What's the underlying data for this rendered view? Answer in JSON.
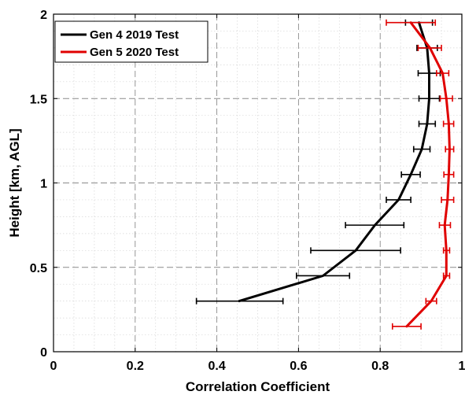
{
  "chart_data": {
    "type": "line",
    "xlabel": "Correlation Coefficient",
    "ylabel": "Height [km, AGL]",
    "xlim": [
      0,
      1
    ],
    "ylim": [
      0,
      2
    ],
    "x_ticks": [
      0,
      0.2,
      0.4,
      0.6,
      0.8,
      1
    ],
    "x_tick_labels": [
      "0",
      "0.2",
      "0.4",
      "0.6",
      "0.8",
      "1"
    ],
    "y_ticks": [
      0,
      0.5,
      1,
      1.5,
      2
    ],
    "y_tick_labels": [
      "0",
      "0.5",
      "1",
      "1.5",
      "2"
    ],
    "grid": {
      "major": true,
      "minor": true
    },
    "legend_position": "top-left",
    "series": [
      {
        "name": "Gen 4 2019 Test",
        "color": "#000000",
        "points": [
          {
            "y": 0.3,
            "x": 0.455,
            "xerr_low": 0.35,
            "xerr_high": 0.562
          },
          {
            "y": 0.45,
            "x": 0.66,
            "xerr_low": 0.595,
            "xerr_high": 0.725
          },
          {
            "y": 0.6,
            "x": 0.74,
            "xerr_low": 0.63,
            "xerr_high": 0.85
          },
          {
            "y": 0.75,
            "x": 0.787,
            "xerr_low": 0.715,
            "xerr_high": 0.858
          },
          {
            "y": 0.9,
            "x": 0.845,
            "xerr_low": 0.815,
            "xerr_high": 0.875
          },
          {
            "y": 1.05,
            "x": 0.875,
            "xerr_low": 0.852,
            "xerr_high": 0.898
          },
          {
            "y": 1.2,
            "x": 0.902,
            "xerr_low": 0.882,
            "xerr_high": 0.922
          },
          {
            "y": 1.35,
            "x": 0.915,
            "xerr_low": 0.895,
            "xerr_high": 0.935
          },
          {
            "y": 1.5,
            "x": 0.92,
            "xerr_low": 0.895,
            "xerr_high": 0.945
          },
          {
            "y": 1.65,
            "x": 0.92,
            "xerr_low": 0.893,
            "xerr_high": 0.947
          },
          {
            "y": 1.8,
            "x": 0.915,
            "xerr_low": 0.89,
            "xerr_high": 0.94
          },
          {
            "y": 1.95,
            "x": 0.895,
            "xerr_low": 0.862,
            "xerr_high": 0.928
          }
        ]
      },
      {
        "name": "Gen 5 2020 Test",
        "color": "#e00000",
        "points": [
          {
            "y": 0.15,
            "x": 0.865,
            "xerr_low": 0.83,
            "xerr_high": 0.9
          },
          {
            "y": 0.3,
            "x": 0.925,
            "xerr_low": 0.912,
            "xerr_high": 0.938
          },
          {
            "y": 0.45,
            "x": 0.962,
            "xerr_low": 0.955,
            "xerr_high": 0.97
          },
          {
            "y": 0.6,
            "x": 0.962,
            "xerr_low": 0.955,
            "xerr_high": 0.97
          },
          {
            "y": 0.75,
            "x": 0.958,
            "xerr_low": 0.945,
            "xerr_high": 0.972
          },
          {
            "y": 0.9,
            "x": 0.965,
            "xerr_low": 0.95,
            "xerr_high": 0.98
          },
          {
            "y": 1.05,
            "x": 0.968,
            "xerr_low": 0.956,
            "xerr_high": 0.98
          },
          {
            "y": 1.2,
            "x": 0.97,
            "xerr_low": 0.96,
            "xerr_high": 0.98
          },
          {
            "y": 1.35,
            "x": 0.968,
            "xerr_low": 0.955,
            "xerr_high": 0.98
          },
          {
            "y": 1.5,
            "x": 0.962,
            "xerr_low": 0.947,
            "xerr_high": 0.977
          },
          {
            "y": 1.65,
            "x": 0.953,
            "xerr_low": 0.938,
            "xerr_high": 0.968
          },
          {
            "y": 1.8,
            "x": 0.922,
            "xerr_low": 0.893,
            "xerr_high": 0.95
          },
          {
            "y": 1.95,
            "x": 0.875,
            "xerr_low": 0.815,
            "xerr_high": 0.935
          }
        ]
      }
    ]
  }
}
